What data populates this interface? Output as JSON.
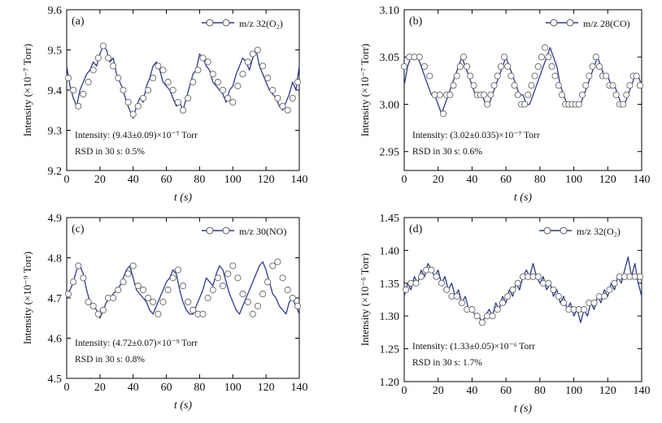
{
  "figure": {
    "charts": [
      {
        "panel_label": "(a)",
        "legend_label": "m/z 32(O₂)",
        "ylabel": "Intensity (×10⁻⁷ Torr)",
        "xlabel": "t (s)",
        "annotation_1": "Intensity: (9.43±0.09)×10⁻⁷ Torr",
        "annotation_2": "RSD in 30 s: 0.5%",
        "xticks": [
          "0",
          "20",
          "40",
          "60",
          "80",
          "100",
          "120",
          "140"
        ],
        "yticks": [
          "9.2",
          "9.3",
          "9.4",
          "9.5",
          "9.6"
        ]
      },
      {
        "panel_label": "(b)",
        "legend_label": "m/z 28(CO)",
        "ylabel": "Intensity (×10⁻⁷ Torr)",
        "xlabel": "t (s)",
        "annotation_1": "Intensity: (3.02±0.035)×10⁻⁷ Torr",
        "annotation_2": "RSD in 30 s: 0.6%",
        "xticks": [
          "0",
          "20",
          "40",
          "60",
          "80",
          "100",
          "120",
          "140"
        ],
        "yticks": [
          "2.95",
          "3.00",
          "3.05",
          "3.10"
        ]
      },
      {
        "panel_label": "(c)",
        "legend_label": "m/z 30(NO)",
        "ylabel": "Intensity (×10⁻⁹ Torr)",
        "xlabel": "t (s)",
        "annotation_1": "Intensity: (4.72±0.07)×10⁻⁹ Torr",
        "annotation_2": "RSD in 30 s: 0.8%",
        "xticks": [
          "0",
          "20",
          "40",
          "60",
          "80",
          "100",
          "120",
          "140"
        ],
        "yticks": [
          "4.5",
          "4.6",
          "4.7",
          "4.8",
          "4.9"
        ]
      },
      {
        "panel_label": "(d)",
        "legend_label": "m/z 32(O₂)",
        "ylabel": "Intensity (×10⁻⁶ Torr)",
        "xlabel": "t (s)",
        "annotation_1": "Intensity: (1.33±0.05)×10⁻⁶ Torr",
        "annotation_2": "RSD in 30 s: 1.7%",
        "xticks": [
          "0",
          "20",
          "40",
          "60",
          "80",
          "100",
          "120",
          "140"
        ],
        "yticks": [
          "1.20",
          "1.25",
          "1.30",
          "1.35",
          "1.40",
          "1.45"
        ]
      }
    ]
  },
  "chart_data": [
    {
      "type": "line",
      "panel": "(a)",
      "xlim": [
        0,
        140
      ],
      "ylim": [
        9.2,
        9.6
      ],
      "line_color": "#2e3a8c",
      "series": [
        {
          "name": "m/z 32(O₂)",
          "x": [
            0,
            2,
            4,
            6,
            8,
            10,
            12,
            14,
            16,
            18,
            20,
            22,
            24,
            26,
            28,
            30,
            32,
            34,
            36,
            38,
            40,
            42,
            44,
            46,
            48,
            50,
            52,
            54,
            56,
            58,
            60,
            62,
            64,
            66,
            68,
            70,
            72,
            74,
            76,
            78,
            80,
            82,
            84,
            86,
            88,
            90,
            92,
            94,
            96,
            98,
            100,
            102,
            104,
            106,
            108,
            110,
            112,
            114,
            116,
            118,
            120,
            122,
            124,
            126,
            128,
            130,
            132,
            134,
            136,
            138,
            140
          ],
          "y": [
            9.46,
            9.41,
            9.38,
            9.36,
            9.4,
            9.42,
            9.44,
            9.45,
            9.47,
            9.46,
            9.49,
            9.51,
            9.5,
            9.47,
            9.48,
            9.44,
            9.42,
            9.4,
            9.37,
            9.35,
            9.33,
            9.36,
            9.38,
            9.37,
            9.41,
            9.43,
            9.46,
            9.47,
            9.45,
            9.42,
            9.41,
            9.4,
            9.38,
            9.36,
            9.37,
            9.35,
            9.38,
            9.41,
            9.44,
            9.45,
            9.49,
            9.48,
            9.46,
            9.45,
            9.42,
            9.41,
            9.4,
            9.39,
            9.37,
            9.4,
            9.41,
            9.44,
            9.46,
            9.48,
            9.47,
            9.45,
            9.48,
            9.5,
            9.46,
            9.44,
            9.42,
            9.4,
            9.39,
            9.38,
            9.36,
            9.35,
            9.37,
            9.39,
            9.42,
            9.4,
            9.46
          ]
        }
      ],
      "markers": {
        "x": [
          1,
          4,
          7,
          10,
          13,
          16,
          19,
          22,
          25,
          28,
          31,
          34,
          37,
          40,
          43,
          46,
          49,
          52,
          55,
          58,
          61,
          64,
          67,
          70,
          73,
          76,
          79,
          82,
          85,
          88,
          91,
          94,
          97,
          100,
          103,
          106,
          109,
          112,
          115,
          118,
          121,
          124,
          127,
          130,
          133,
          136,
          139
        ],
        "y": [
          9.43,
          9.4,
          9.36,
          9.39,
          9.42,
          9.45,
          9.48,
          9.51,
          9.48,
          9.46,
          9.43,
          9.4,
          9.37,
          9.34,
          9.36,
          9.38,
          9.4,
          9.43,
          9.46,
          9.45,
          9.42,
          9.4,
          9.37,
          9.35,
          9.38,
          9.42,
          9.45,
          9.48,
          9.47,
          9.44,
          9.42,
          9.4,
          9.38,
          9.37,
          9.41,
          9.44,
          9.47,
          9.49,
          9.5,
          9.46,
          9.43,
          9.4,
          9.38,
          9.36,
          9.35,
          9.38,
          9.42
        ]
      }
    },
    {
      "type": "line",
      "panel": "(b)",
      "xlim": [
        0,
        140
      ],
      "ylim": [
        2.93,
        3.1
      ],
      "line_color": "#2e3a8c",
      "series": [
        {
          "name": "m/z 28(CO)",
          "x": [
            0,
            2,
            4,
            6,
            8,
            10,
            12,
            14,
            16,
            18,
            20,
            22,
            24,
            26,
            28,
            30,
            32,
            34,
            36,
            38,
            40,
            42,
            44,
            46,
            48,
            50,
            52,
            54,
            56,
            58,
            60,
            62,
            64,
            66,
            68,
            70,
            72,
            74,
            76,
            78,
            80,
            82,
            84,
            86,
            88,
            90,
            92,
            94,
            96,
            98,
            100,
            102,
            104,
            106,
            108,
            110,
            112,
            114,
            116,
            118,
            120,
            122,
            124,
            126,
            128,
            130,
            132,
            134,
            136,
            138,
            140
          ],
          "y": [
            3.02,
            3.04,
            3.05,
            3.05,
            3.05,
            3.04,
            3.03,
            3.02,
            3.01,
            3.01,
            3.0,
            2.99,
            3.0,
            3.01,
            3.02,
            3.03,
            3.04,
            3.05,
            3.04,
            3.03,
            3.02,
            3.01,
            3.01,
            3.01,
            3.0,
            3.0,
            3.01,
            3.02,
            3.03,
            3.04,
            3.05,
            3.04,
            3.03,
            3.02,
            3.01,
            3.01,
            3.0,
            3.0,
            3.01,
            3.02,
            3.03,
            3.04,
            3.05,
            3.06,
            3.05,
            3.04,
            3.02,
            3.01,
            3.0,
            3.0,
            3.0,
            3.0,
            3.0,
            3.01,
            3.02,
            3.03,
            3.04,
            3.05,
            3.04,
            3.03,
            3.03,
            3.02,
            3.02,
            3.01,
            3.0,
            3.0,
            3.01,
            3.02,
            3.03,
            3.03,
            3.02
          ]
        }
      ],
      "markers": {
        "x": [
          0,
          3,
          6,
          9,
          12,
          15,
          18,
          21,
          23,
          25,
          27,
          29,
          31,
          33,
          35,
          37,
          39,
          41,
          43,
          45,
          47,
          49,
          51,
          53,
          55,
          57,
          59,
          61,
          63,
          65,
          67,
          69,
          71,
          73,
          75,
          77,
          79,
          81,
          83,
          85,
          87,
          89,
          91,
          93,
          95,
          97,
          99,
          101,
          103,
          105,
          107,
          109,
          111,
          113,
          115,
          117,
          119,
          121,
          123,
          125,
          127,
          129,
          131,
          133,
          135,
          137,
          139
        ],
        "y": [
          3.04,
          3.05,
          3.05,
          3.05,
          3.04,
          3.03,
          3.01,
          3.01,
          2.99,
          3.01,
          3.01,
          3.02,
          3.03,
          3.04,
          3.05,
          3.04,
          3.03,
          3.02,
          3.01,
          3.01,
          3.01,
          3.0,
          3.01,
          3.02,
          3.03,
          3.04,
          3.05,
          3.04,
          3.03,
          3.02,
          3.01,
          3.0,
          3.0,
          3.01,
          3.02,
          3.03,
          3.04,
          3.05,
          3.06,
          3.05,
          3.04,
          3.03,
          3.02,
          3.01,
          3.0,
          3.0,
          3.0,
          3.0,
          3.0,
          3.01,
          3.02,
          3.03,
          3.04,
          3.05,
          3.04,
          3.03,
          3.03,
          3.02,
          3.02,
          3.01,
          3.0,
          3.0,
          3.01,
          3.02,
          3.03,
          3.03,
          3.02
        ]
      }
    },
    {
      "type": "line",
      "panel": "(c)",
      "xlim": [
        0,
        140
      ],
      "ylim": [
        4.5,
        4.9
      ],
      "line_color": "#2e3a8c",
      "series": [
        {
          "name": "m/z 30(NO)",
          "x": [
            0,
            2,
            4,
            6,
            8,
            10,
            12,
            14,
            16,
            18,
            20,
            22,
            24,
            26,
            28,
            30,
            32,
            34,
            36,
            38,
            40,
            42,
            44,
            46,
            48,
            50,
            52,
            54,
            56,
            58,
            60,
            62,
            64,
            66,
            68,
            70,
            72,
            74,
            76,
            78,
            80,
            82,
            84,
            86,
            88,
            90,
            92,
            94,
            96,
            98,
            100,
            102,
            104,
            106,
            108,
            110,
            112,
            114,
            116,
            118,
            120,
            122,
            124,
            126,
            128,
            130,
            132,
            134,
            136,
            138,
            140
          ],
          "y": [
            4.7,
            4.72,
            4.74,
            4.77,
            4.78,
            4.76,
            4.72,
            4.69,
            4.68,
            4.67,
            4.65,
            4.67,
            4.69,
            4.7,
            4.71,
            4.72,
            4.73,
            4.75,
            4.77,
            4.78,
            4.75,
            4.72,
            4.71,
            4.7,
            4.69,
            4.67,
            4.66,
            4.68,
            4.7,
            4.72,
            4.74,
            4.75,
            4.77,
            4.76,
            4.72,
            4.69,
            4.67,
            4.66,
            4.66,
            4.68,
            4.7,
            4.72,
            4.75,
            4.74,
            4.73,
            4.76,
            4.78,
            4.77,
            4.74,
            4.71,
            4.69,
            4.67,
            4.66,
            4.68,
            4.7,
            4.72,
            4.74,
            4.76,
            4.78,
            4.79,
            4.77,
            4.74,
            4.71,
            4.7,
            4.68,
            4.67,
            4.66,
            4.69,
            4.7,
            4.68,
            4.66
          ]
        }
      ],
      "markers": {
        "x": [
          1,
          4,
          7,
          10,
          13,
          16,
          19,
          22,
          25,
          28,
          31,
          34,
          37,
          40,
          43,
          46,
          49,
          52,
          55,
          58,
          61,
          64,
          67,
          70,
          73,
          76,
          79,
          82,
          85,
          88,
          91,
          94,
          97,
          100,
          103,
          106,
          109,
          112,
          115,
          118,
          121,
          124,
          127,
          130,
          133,
          136,
          139
        ],
        "y": [
          4.71,
          4.74,
          4.78,
          4.75,
          4.69,
          4.68,
          4.66,
          4.67,
          4.7,
          4.7,
          4.72,
          4.74,
          4.76,
          4.78,
          4.73,
          4.72,
          4.7,
          4.69,
          4.66,
          4.69,
          4.72,
          4.75,
          4.77,
          4.73,
          4.69,
          4.67,
          4.66,
          4.66,
          4.7,
          4.72,
          4.75,
          4.73,
          4.76,
          4.78,
          4.75,
          4.71,
          4.69,
          4.66,
          4.68,
          4.71,
          4.74,
          4.78,
          4.79,
          4.75,
          4.72,
          4.7,
          4.68
        ]
      }
    },
    {
      "type": "line",
      "panel": "(d)",
      "xlim": [
        0,
        140
      ],
      "ylim": [
        1.2,
        1.45
      ],
      "line_color": "#2e3a8c",
      "series": [
        {
          "name": "m/z 32(O₂)",
          "x": [
            0,
            2,
            4,
            6,
            8,
            10,
            12,
            14,
            16,
            18,
            20,
            22,
            24,
            26,
            28,
            30,
            32,
            34,
            36,
            38,
            40,
            42,
            44,
            46,
            48,
            50,
            52,
            54,
            56,
            58,
            60,
            62,
            64,
            66,
            68,
            70,
            72,
            74,
            76,
            78,
            80,
            82,
            84,
            86,
            88,
            90,
            92,
            94,
            96,
            98,
            100,
            102,
            104,
            106,
            108,
            110,
            112,
            114,
            116,
            118,
            120,
            122,
            124,
            126,
            128,
            130,
            132,
            134,
            136,
            138,
            140
          ],
          "y": [
            1.33,
            1.35,
            1.34,
            1.36,
            1.35,
            1.37,
            1.36,
            1.38,
            1.37,
            1.36,
            1.37,
            1.35,
            1.36,
            1.34,
            1.35,
            1.33,
            1.34,
            1.32,
            1.33,
            1.31,
            1.31,
            1.3,
            1.3,
            1.29,
            1.3,
            1.31,
            1.3,
            1.32,
            1.31,
            1.33,
            1.32,
            1.34,
            1.33,
            1.35,
            1.34,
            1.36,
            1.37,
            1.36,
            1.38,
            1.36,
            1.35,
            1.36,
            1.34,
            1.35,
            1.33,
            1.34,
            1.32,
            1.33,
            1.31,
            1.32,
            1.3,
            1.31,
            1.29,
            1.31,
            1.3,
            1.32,
            1.31,
            1.33,
            1.32,
            1.34,
            1.33,
            1.35,
            1.34,
            1.36,
            1.35,
            1.37,
            1.39,
            1.36,
            1.38,
            1.35,
            1.33
          ]
        }
      ],
      "markers": {
        "x": [
          1,
          4,
          7,
          10,
          13,
          16,
          19,
          22,
          25,
          28,
          31,
          34,
          37,
          40,
          43,
          46,
          49,
          52,
          55,
          58,
          61,
          64,
          67,
          70,
          73,
          76,
          79,
          82,
          85,
          88,
          91,
          94,
          97,
          100,
          103,
          106,
          109,
          112,
          115,
          118,
          121,
          124,
          127,
          130,
          133,
          136,
          139
        ],
        "y": [
          1.34,
          1.35,
          1.35,
          1.36,
          1.37,
          1.37,
          1.36,
          1.35,
          1.34,
          1.33,
          1.33,
          1.32,
          1.31,
          1.31,
          1.3,
          1.29,
          1.3,
          1.3,
          1.31,
          1.32,
          1.33,
          1.34,
          1.35,
          1.36,
          1.36,
          1.36,
          1.36,
          1.35,
          1.35,
          1.34,
          1.33,
          1.32,
          1.31,
          1.31,
          1.31,
          1.31,
          1.32,
          1.32,
          1.33,
          1.33,
          1.34,
          1.35,
          1.36,
          1.36,
          1.36,
          1.36,
          1.36
        ]
      }
    }
  ]
}
